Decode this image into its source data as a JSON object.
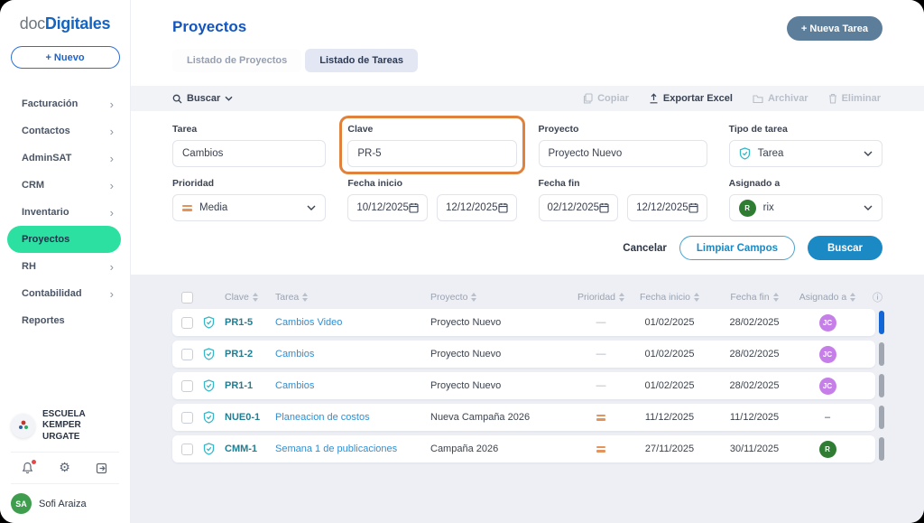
{
  "colors": {
    "primary_blue": "#1565c0",
    "mint_active": "#2ce0a2",
    "search_button": "#1b89c4",
    "new_task_button": "#5d7e9b",
    "highlight_orange": "#e0823c",
    "shield_teal": "#35b7c8",
    "bar_active": "#1266d6",
    "bar_inactive": "#a0a7b1"
  },
  "sidebar": {
    "logo": {
      "part1": "doc",
      "part2": "Digitales"
    },
    "new_button": "+ Nuevo",
    "items": [
      {
        "label": "Facturación",
        "chevron": true,
        "active": false
      },
      {
        "label": "Contactos",
        "chevron": true,
        "active": false
      },
      {
        "label": "AdminSAT",
        "chevron": true,
        "active": false
      },
      {
        "label": "CRM",
        "chevron": true,
        "active": false
      },
      {
        "label": "Inventario",
        "chevron": true,
        "active": false
      },
      {
        "label": "Proyectos",
        "chevron": false,
        "active": true
      },
      {
        "label": "RH",
        "chevron": true,
        "active": false
      },
      {
        "label": "Contabilidad",
        "chevron": true,
        "active": false
      },
      {
        "label": "Reportes",
        "chevron": false,
        "active": false
      }
    ],
    "org": {
      "name": "ESCUELA KEMPER URGATE"
    },
    "user": {
      "initials": "SA",
      "name": "Sofi Araiza"
    }
  },
  "header": {
    "title": "Proyectos",
    "tabs": [
      {
        "label": "Listado de Proyectos",
        "active": false
      },
      {
        "label": "Listado de Tareas",
        "active": true
      }
    ],
    "new_task_button": "+ Nueva Tarea"
  },
  "toolbar": {
    "search_label": "Buscar",
    "actions": [
      {
        "label": "Copiar",
        "icon": "copy",
        "enabled": false
      },
      {
        "label": "Exportar Excel",
        "icon": "export",
        "enabled": true
      },
      {
        "label": "Archivar",
        "icon": "archive",
        "enabled": false
      },
      {
        "label": "Eliminar",
        "icon": "trash",
        "enabled": false
      }
    ]
  },
  "filters": {
    "tarea": {
      "label": "Tarea",
      "value": "Cambios"
    },
    "clave": {
      "label": "Clave",
      "value": "PR-5",
      "highlighted": true
    },
    "proyecto": {
      "label": "Proyecto",
      "value": "Proyecto Nuevo"
    },
    "tipo": {
      "label": "Tipo de tarea",
      "value": "Tarea"
    },
    "prioridad": {
      "label": "Prioridad",
      "value": "Media"
    },
    "fecha_inicio": {
      "label": "Fecha inicio",
      "from": "10/12/2025",
      "to": "12/12/2025"
    },
    "fecha_fin": {
      "label": "Fecha fin",
      "from": "02/12/2025",
      "to": "12/12/2025"
    },
    "asignado": {
      "label": "Asignado a",
      "value": "rix",
      "avatar_initial": "R",
      "avatar_color": "#2e7d32"
    },
    "buttons": {
      "cancel": "Cancelar",
      "clear": "Limpiar Campos",
      "search": "Buscar"
    }
  },
  "table": {
    "columns": [
      "Clave",
      "Tarea",
      "Proyecto",
      "Prioridad",
      "Fecha inicio",
      "Fecha fin",
      "Asignado a"
    ],
    "rows": [
      {
        "clave": "PR1-5",
        "tarea": "Cambios Video",
        "proyecto": "Proyecto Nuevo",
        "prioridad": "none",
        "fecha_inicio": "01/02/2025",
        "fecha_fin": "28/02/2025",
        "asignado": "JC",
        "asignado_color": "#c67ee8",
        "bar_color": "#1266d6"
      },
      {
        "clave": "PR1-2",
        "tarea": "Cambios",
        "proyecto": "Proyecto Nuevo",
        "prioridad": "none",
        "fecha_inicio": "01/02/2025",
        "fecha_fin": "28/02/2025",
        "asignado": "JC",
        "asignado_color": "#c67ee8",
        "bar_color": "#a0a7b1"
      },
      {
        "clave": "PR1-1",
        "tarea": "Cambios",
        "proyecto": "Proyecto Nuevo",
        "prioridad": "none",
        "fecha_inicio": "01/02/2025",
        "fecha_fin": "28/02/2025",
        "asignado": "JC",
        "asignado_color": "#c67ee8",
        "bar_color": "#a0a7b1"
      },
      {
        "clave": "NUE0-1",
        "tarea": "Planeacion de costos",
        "proyecto": "Nueva Campaña 2026",
        "prioridad": "media",
        "fecha_inicio": "11/12/2025",
        "fecha_fin": "11/12/2025",
        "asignado": "–",
        "asignado_color": null,
        "bar_color": "#a0a7b1"
      },
      {
        "clave": "CMM-1",
        "tarea": "Semana 1 de publicaciones",
        "proyecto": "Campaña 2026",
        "prioridad": "media",
        "fecha_inicio": "27/11/2025",
        "fecha_fin": "30/11/2025",
        "asignado": "R",
        "asignado_color": "#2e7d32",
        "bar_color": "#a0a7b1"
      }
    ]
  }
}
